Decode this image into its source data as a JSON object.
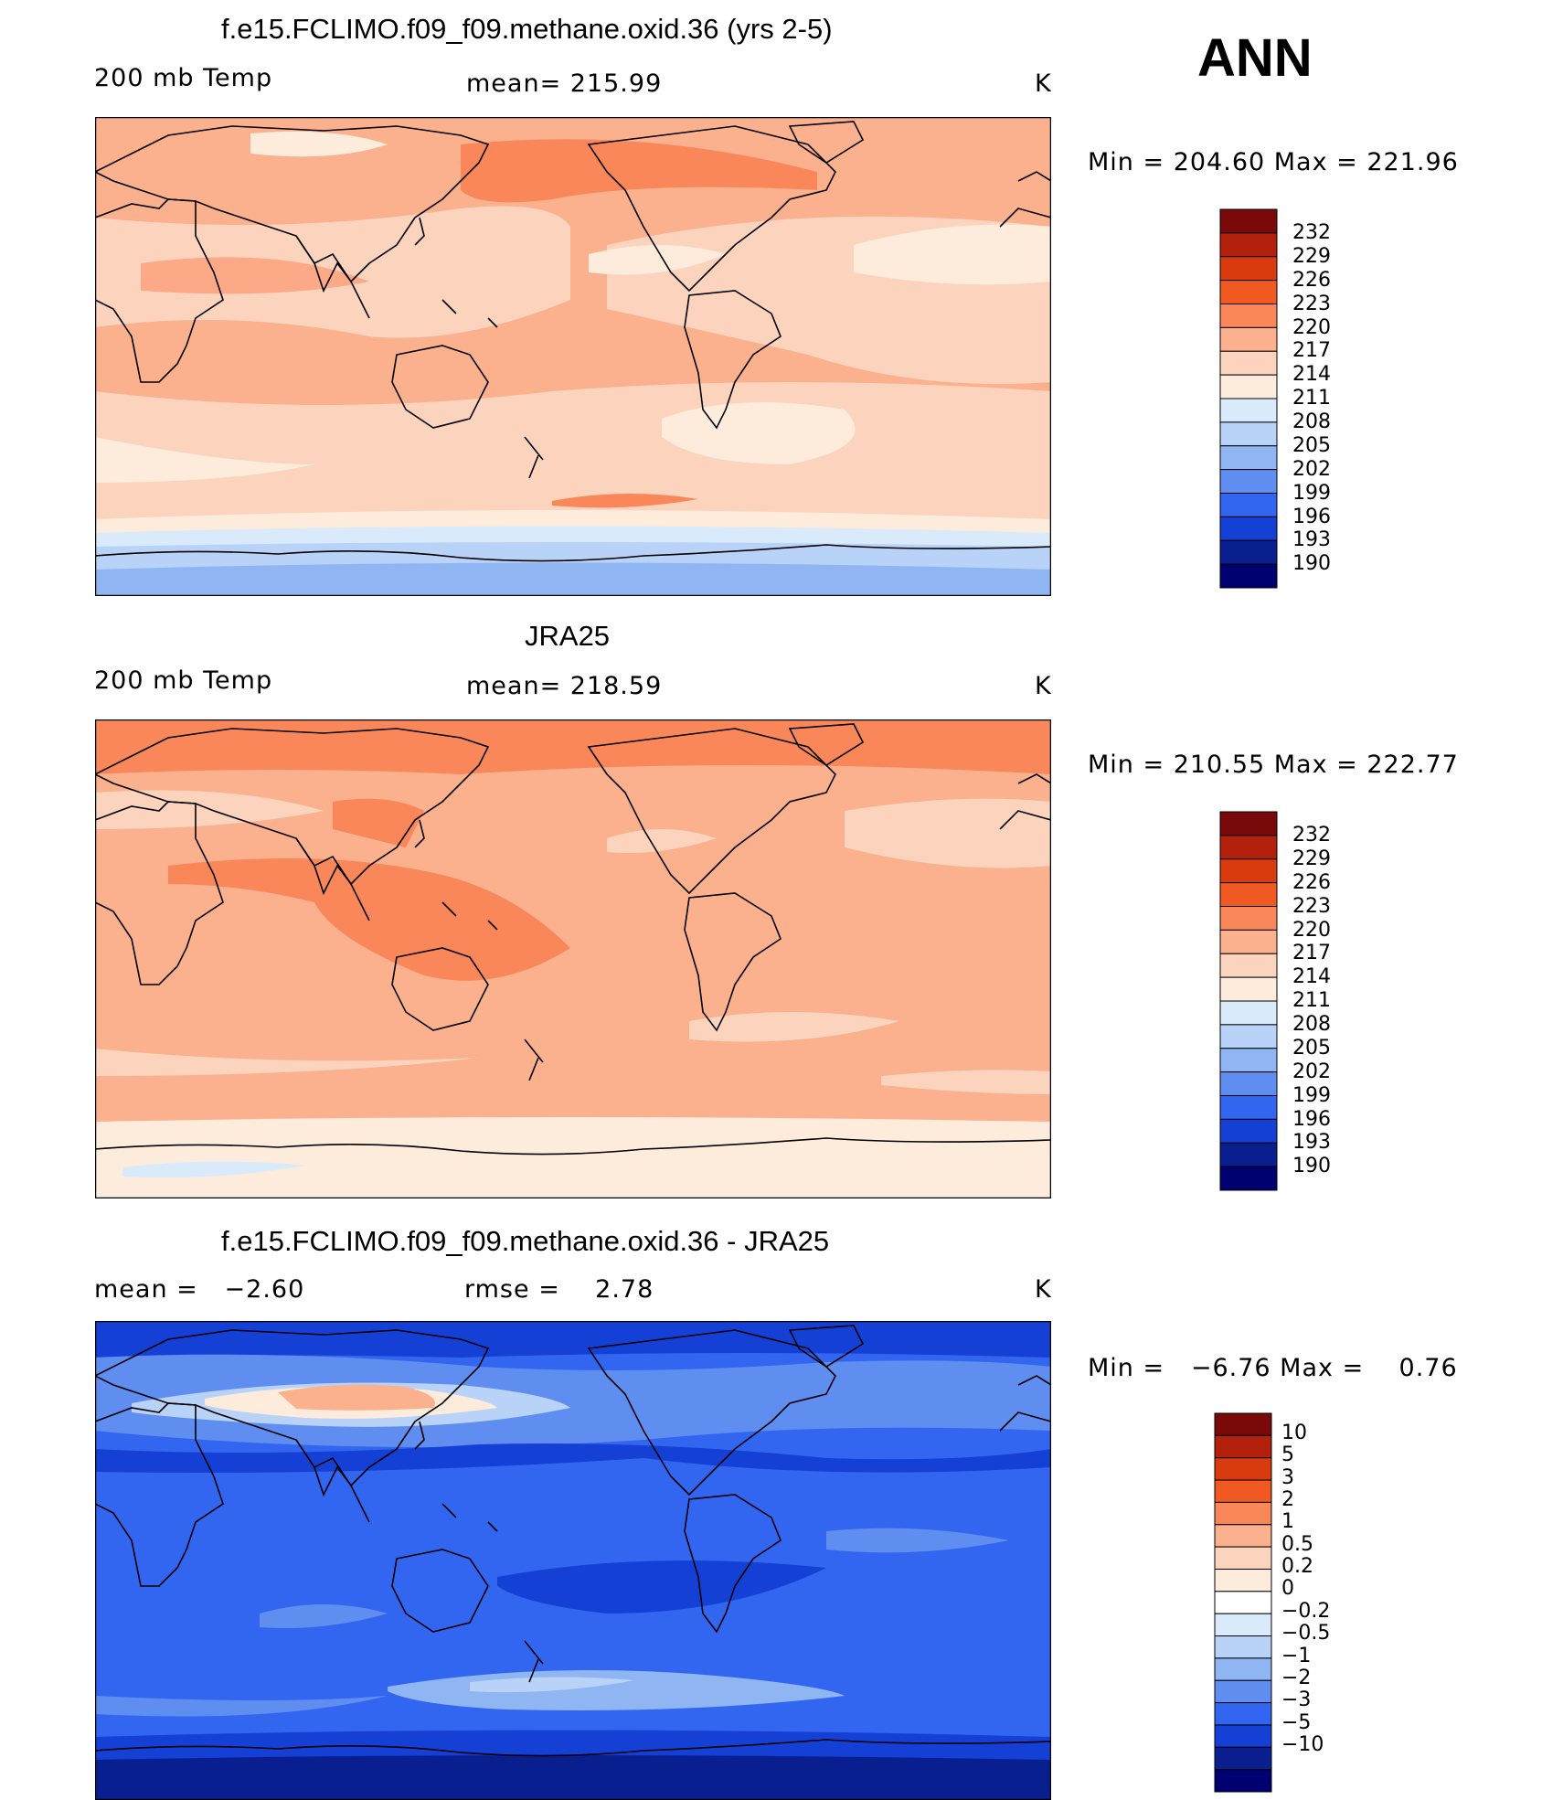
{
  "season": "ANN",
  "panels": [
    {
      "title": "f.e15.FCLIMO.f09_f09.methane.oxid.36 (yrs 2-5)",
      "left_label": "200 mb Temp",
      "center_label": "mean= 215.99",
      "units": "K",
      "minmax": "Min = 204.60 Max = 221.96",
      "colorbar_ticks": [
        "232",
        "229",
        "226",
        "223",
        "220",
        "217",
        "214",
        "211",
        "208",
        "205",
        "202",
        "199",
        "196",
        "193",
        "190"
      ]
    },
    {
      "title": "JRA25",
      "left_label": "200 mb Temp",
      "center_label": "mean= 218.59",
      "units": "K",
      "minmax": "Min = 210.55 Max = 222.77",
      "colorbar_ticks": [
        "232",
        "229",
        "226",
        "223",
        "220",
        "217",
        "214",
        "211",
        "208",
        "205",
        "202",
        "199",
        "196",
        "193",
        "190"
      ]
    },
    {
      "title": "f.e15.FCLIMO.f09_f09.methane.oxid.36 - JRA25",
      "left_label": "mean =   −2.60",
      "center_label": "rmse =    2.78",
      "units": "K",
      "minmax": "Min =   −6.76 Max =    0.76",
      "colorbar_ticks": [
        "10",
        "5",
        "3",
        "2",
        "1",
        "0.5",
        "0.2",
        "0",
        "−0.2",
        "−0.5",
        "−1",
        "−2",
        "−3",
        "−5",
        "−10"
      ]
    }
  ],
  "colors": {
    "abs_scale": [
      "#7a0a0a",
      "#b3210c",
      "#d93b0f",
      "#f05a22",
      "#f9875a",
      "#fbb08e",
      "#fcd3bd",
      "#fdebdc",
      "#d9eafb",
      "#b9d3f8",
      "#8fb6f3",
      "#5f8ef0",
      "#3366f0",
      "#1440d6",
      "#0a1f8f",
      "#000070"
    ],
    "diff_scale": [
      "#7a0a0a",
      "#b3210c",
      "#d93b0f",
      "#f05a22",
      "#f9875a",
      "#fbb08e",
      "#fcd3bd",
      "#fdebdc",
      "#ffffff",
      "#d9eafb",
      "#b9d3f8",
      "#8fb6f3",
      "#5f8ef0",
      "#3366f0",
      "#1440d6",
      "#0a1f8f",
      "#000070"
    ]
  }
}
